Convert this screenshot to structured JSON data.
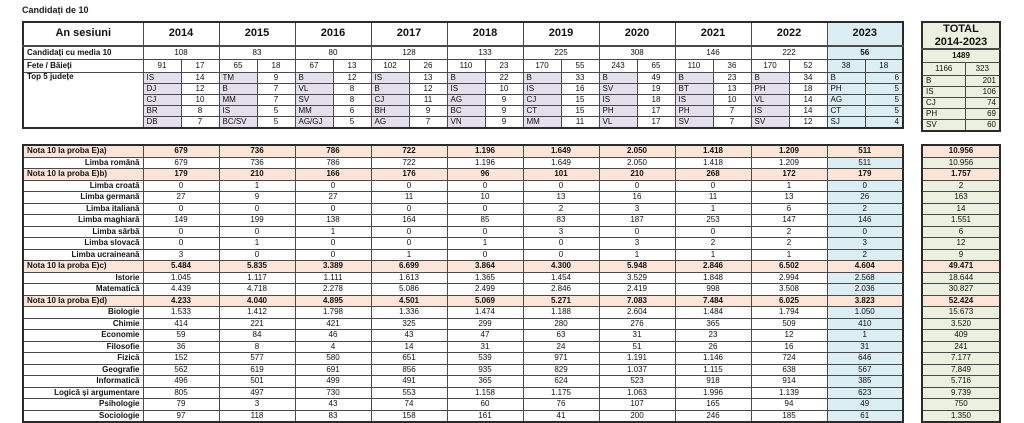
{
  "title": "Candidați de 10",
  "colors": {
    "lavender": "#E4DFEC",
    "blue_2023": "#DBEEF4",
    "green_total": "#EBF1DE",
    "peach_section": "#FCE4D6",
    "border": "#4a4a4a"
  },
  "chart_data": [
    {
      "type": "table",
      "name": "summary-by-session",
      "title": "Candidați de 10",
      "corner_label": "An sesiuni",
      "years": [
        "2014",
        "2015",
        "2016",
        "2017",
        "2018",
        "2019",
        "2020",
        "2021",
        "2022",
        "2023"
      ],
      "highlight_year": "2023",
      "media_row": {
        "label": "Candidați cu media 10",
        "values": [
          "108",
          "83",
          "80",
          "128",
          "133",
          "225",
          "308",
          "146",
          "222",
          "56"
        ]
      },
      "gender_row": {
        "label": "Fete / Băieți",
        "values": [
          [
            "91",
            "17"
          ],
          [
            "65",
            "18"
          ],
          [
            "67",
            "13"
          ],
          [
            "102",
            "26"
          ],
          [
            "110",
            "23"
          ],
          [
            "170",
            "55"
          ],
          [
            "243",
            "65"
          ],
          [
            "110",
            "36"
          ],
          [
            "170",
            "52"
          ],
          [
            "38",
            "18"
          ]
        ]
      },
      "top5_row": {
        "label": "Top 5 județe",
        "values": [
          [
            [
              "IS",
              "14"
            ],
            [
              "DJ",
              "12"
            ],
            [
              "CJ",
              "10"
            ],
            [
              "BR",
              "8"
            ],
            [
              "DB",
              "7"
            ]
          ],
          [
            [
              "TM",
              "9"
            ],
            [
              "B",
              "7"
            ],
            [
              "MM",
              "7"
            ],
            [
              "IS",
              "5"
            ],
            [
              "BC/SV",
              "5"
            ]
          ],
          [
            [
              "B",
              "12"
            ],
            [
              "VL",
              "8"
            ],
            [
              "SV",
              "8"
            ],
            [
              "MM",
              "6"
            ],
            [
              "AG/GJ",
              "5"
            ]
          ],
          [
            [
              "IS",
              "13"
            ],
            [
              "B",
              "12"
            ],
            [
              "CJ",
              "11"
            ],
            [
              "BH",
              "9"
            ],
            [
              "AG",
              "7"
            ]
          ],
          [
            [
              "B",
              "22"
            ],
            [
              "IS",
              "10"
            ],
            [
              "AG",
              "9"
            ],
            [
              "BC",
              "9"
            ],
            [
              "VN",
              "9"
            ]
          ],
          [
            [
              "B",
              "33"
            ],
            [
              "IS",
              "16"
            ],
            [
              "CJ",
              "15"
            ],
            [
              "CT",
              "15"
            ],
            [
              "MM",
              "11"
            ]
          ],
          [
            [
              "B",
              "49"
            ],
            [
              "SV",
              "19"
            ],
            [
              "IS",
              "18"
            ],
            [
              "PH",
              "17"
            ],
            [
              "VL",
              "17"
            ]
          ],
          [
            [
              "B",
              "23"
            ],
            [
              "BT",
              "13"
            ],
            [
              "IS",
              "10"
            ],
            [
              "PH",
              "7"
            ],
            [
              "SV",
              "7"
            ]
          ],
          [
            [
              "B",
              "34"
            ],
            [
              "PH",
              "18"
            ],
            [
              "VL",
              "14"
            ],
            [
              "IS",
              "14"
            ],
            [
              "SV",
              "12"
            ]
          ],
          [
            [
              "B",
              "6"
            ],
            [
              "PH",
              "5"
            ],
            [
              "AG",
              "5"
            ],
            [
              "CT",
              "5"
            ],
            [
              "SJ",
              "4"
            ]
          ]
        ]
      },
      "total": {
        "header_line1": "TOTAL",
        "header_line2": "2014-2023",
        "media": "1489",
        "gender": [
          "1166",
          "323"
        ],
        "top5": [
          [
            "B",
            "201"
          ],
          [
            "IS",
            "106"
          ],
          [
            "CJ",
            "74"
          ],
          [
            "PH",
            "69"
          ],
          [
            "SV",
            "60"
          ]
        ]
      }
    },
    {
      "type": "table",
      "name": "nota-10-pe-probe",
      "years": [
        "2014",
        "2015",
        "2016",
        "2017",
        "2018",
        "2019",
        "2020",
        "2021",
        "2022",
        "2023"
      ],
      "highlight_year": "2023",
      "total_label": "TOTAL 2014-2023",
      "rows": [
        {
          "label": "Nota 10 la proba E)a)",
          "section": true,
          "values": [
            "679",
            "736",
            "786",
            "722",
            "1.196",
            "1.649",
            "2.050",
            "1.418",
            "1.209",
            "511"
          ],
          "total": "10.956"
        },
        {
          "label": "Limba română",
          "section": false,
          "values": [
            "679",
            "736",
            "786",
            "722",
            "1.196",
            "1.649",
            "2.050",
            "1.418",
            "1.209",
            "511"
          ],
          "total": "10.956"
        },
        {
          "label": "Nota 10 la proba E)b)",
          "section": true,
          "values": [
            "179",
            "210",
            "166",
            "176",
            "96",
            "101",
            "210",
            "268",
            "172",
            "179"
          ],
          "total": "1.757"
        },
        {
          "label": "Limba croată",
          "section": false,
          "values": [
            "0",
            "1",
            "0",
            "0",
            "0",
            "0",
            "0",
            "0",
            "1",
            "0"
          ],
          "total": "2"
        },
        {
          "label": "Limba germană",
          "section": false,
          "values": [
            "27",
            "9",
            "27",
            "11",
            "10",
            "13",
            "16",
            "11",
            "13",
            "26"
          ],
          "total": "163"
        },
        {
          "label": "Limba italiană",
          "section": false,
          "values": [
            "0",
            "0",
            "0",
            "0",
            "0",
            "2",
            "3",
            "1",
            "6",
            "2"
          ],
          "total": "14"
        },
        {
          "label": "Limba maghiară",
          "section": false,
          "values": [
            "149",
            "199",
            "138",
            "164",
            "85",
            "83",
            "187",
            "253",
            "147",
            "146"
          ],
          "total": "1.551"
        },
        {
          "label": "Limba sârbă",
          "section": false,
          "values": [
            "0",
            "0",
            "1",
            "0",
            "0",
            "3",
            "0",
            "0",
            "2",
            "0"
          ],
          "total": "6"
        },
        {
          "label": "Limba slovacă",
          "section": false,
          "values": [
            "0",
            "1",
            "0",
            "0",
            "1",
            "0",
            "3",
            "2",
            "2",
            "3"
          ],
          "total": "12"
        },
        {
          "label": "Limba ucraineană",
          "section": false,
          "values": [
            "3",
            "0",
            "0",
            "1",
            "0",
            "0",
            "1",
            "1",
            "1",
            "2"
          ],
          "total": "9"
        },
        {
          "label": "Nota 10 la proba E)c)",
          "section": true,
          "values": [
            "5.484",
            "5.835",
            "3.389",
            "6.699",
            "3.864",
            "4.300",
            "5.948",
            "2.846",
            "6.502",
            "4.604"
          ],
          "total": "49.471"
        },
        {
          "label": "Istorie",
          "section": false,
          "values": [
            "1.045",
            "1.117",
            "1.111",
            "1.613",
            "1.365",
            "1.454",
            "3.529",
            "1.848",
            "2.994",
            "2.568"
          ],
          "total": "18.644"
        },
        {
          "label": "Matematică",
          "section": false,
          "values": [
            "4.439",
            "4.718",
            "2.278",
            "5.086",
            "2.499",
            "2.846",
            "2.419",
            "998",
            "3.508",
            "2.036"
          ],
          "total": "30.827"
        },
        {
          "label": "Nota 10 la proba E)d)",
          "section": true,
          "values": [
            "4.233",
            "4.040",
            "4.895",
            "4.501",
            "5.069",
            "5.271",
            "7.083",
            "7.484",
            "6.025",
            "3.823"
          ],
          "total": "52.424"
        },
        {
          "label": "Biologie",
          "section": false,
          "values": [
            "1.533",
            "1.412",
            "1.798",
            "1.336",
            "1.474",
            "1.188",
            "2.604",
            "1.484",
            "1.794",
            "1.050"
          ],
          "total": "15.673"
        },
        {
          "label": "Chimie",
          "section": false,
          "values": [
            "414",
            "221",
            "421",
            "325",
            "299",
            "280",
            "276",
            "365",
            "509",
            "410"
          ],
          "total": "3.520"
        },
        {
          "label": "Economie",
          "section": false,
          "values": [
            "59",
            "84",
            "46",
            "43",
            "47",
            "63",
            "31",
            "23",
            "12",
            "1"
          ],
          "total": "409"
        },
        {
          "label": "Filosofie",
          "section": false,
          "values": [
            "36",
            "8",
            "4",
            "14",
            "31",
            "24",
            "51",
            "26",
            "16",
            "31"
          ],
          "total": "241"
        },
        {
          "label": "Fizică",
          "section": false,
          "values": [
            "152",
            "577",
            "580",
            "651",
            "539",
            "971",
            "1.191",
            "1.146",
            "724",
            "646"
          ],
          "total": "7.177"
        },
        {
          "label": "Geografie",
          "section": false,
          "values": [
            "562",
            "619",
            "691",
            "856",
            "935",
            "829",
            "1.037",
            "1.115",
            "638",
            "567"
          ],
          "total": "7.849"
        },
        {
          "label": "Informatică",
          "section": false,
          "values": [
            "496",
            "501",
            "499",
            "491",
            "365",
            "624",
            "523",
            "918",
            "914",
            "385"
          ],
          "total": "5.716"
        },
        {
          "label": "Logică și argumentare",
          "section": false,
          "values": [
            "805",
            "497",
            "730",
            "553",
            "1.158",
            "1.175",
            "1.063",
            "1.996",
            "1.139",
            "623"
          ],
          "total": "9.739"
        },
        {
          "label": "Psihologie",
          "section": false,
          "values": [
            "79",
            "3",
            "43",
            "74",
            "60",
            "76",
            "107",
            "165",
            "94",
            "49"
          ],
          "total": "750"
        },
        {
          "label": "Sociologie",
          "section": false,
          "values": [
            "97",
            "118",
            "83",
            "158",
            "161",
            "41",
            "200",
            "246",
            "185",
            "61"
          ],
          "total": "1.350"
        }
      ]
    }
  ]
}
